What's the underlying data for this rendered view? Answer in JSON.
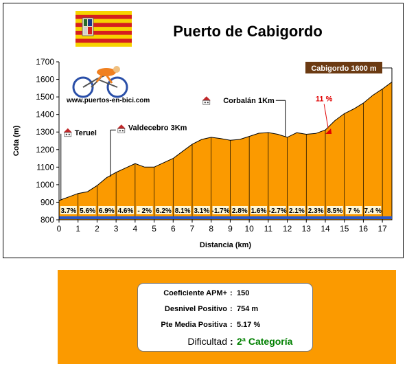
{
  "header": {
    "title": "Puerto de Cabigordo",
    "flag_colors": [
      "#f6d400",
      "#d51f1f"
    ],
    "website": "www.puertos-en-bici.com"
  },
  "chart_data": {
    "type": "area",
    "title": "Puerto de Cabigordo",
    "xlabel": "Distancia (km)",
    "ylabel": "Cota (m)",
    "xlim": [
      0,
      17.5
    ],
    "ylim": [
      800,
      1700
    ],
    "x_ticks": [
      0,
      1,
      2,
      3,
      4,
      5,
      6,
      7,
      8,
      9,
      10,
      11,
      12,
      13,
      14,
      15,
      16,
      17
    ],
    "y_ticks": [
      800,
      900,
      1000,
      1100,
      1200,
      1300,
      1400,
      1500,
      1600,
      1700
    ],
    "grid": false,
    "fill_color": "#fb9a00",
    "profile": [
      {
        "x": 0,
        "y": 910
      },
      {
        "x": 0.5,
        "y": 930
      },
      {
        "x": 1,
        "y": 950
      },
      {
        "x": 1.5,
        "y": 960
      },
      {
        "x": 2,
        "y": 995
      },
      {
        "x": 2.5,
        "y": 1040
      },
      {
        "x": 3,
        "y": 1070
      },
      {
        "x": 3.5,
        "y": 1095
      },
      {
        "x": 4,
        "y": 1120
      },
      {
        "x": 4.5,
        "y": 1100
      },
      {
        "x": 5,
        "y": 1100
      },
      {
        "x": 5.5,
        "y": 1125
      },
      {
        "x": 6,
        "y": 1150
      },
      {
        "x": 6.5,
        "y": 1190
      },
      {
        "x": 7,
        "y": 1230
      },
      {
        "x": 7.5,
        "y": 1258
      },
      {
        "x": 8,
        "y": 1270
      },
      {
        "x": 8.5,
        "y": 1263
      },
      {
        "x": 9,
        "y": 1253
      },
      {
        "x": 9.5,
        "y": 1258
      },
      {
        "x": 10,
        "y": 1275
      },
      {
        "x": 10.5,
        "y": 1293
      },
      {
        "x": 11,
        "y": 1297
      },
      {
        "x": 11.5,
        "y": 1287
      },
      {
        "x": 12,
        "y": 1270
      },
      {
        "x": 12.5,
        "y": 1296
      },
      {
        "x": 13,
        "y": 1287
      },
      {
        "x": 13.5,
        "y": 1292
      },
      {
        "x": 14,
        "y": 1312
      },
      {
        "x": 14.5,
        "y": 1365
      },
      {
        "x": 15,
        "y": 1405
      },
      {
        "x": 15.5,
        "y": 1432
      },
      {
        "x": 16,
        "y": 1465
      },
      {
        "x": 16.5,
        "y": 1510
      },
      {
        "x": 17,
        "y": 1545
      },
      {
        "x": 17.5,
        "y": 1585
      }
    ],
    "segment_gradients": [
      {
        "km": 0,
        "label": "3.7%"
      },
      {
        "km": 1,
        "label": "5.6%"
      },
      {
        "km": 2,
        "label": "6.9%"
      },
      {
        "km": 3,
        "label": "4.6%"
      },
      {
        "km": 4,
        "label": "- 2%"
      },
      {
        "km": 5,
        "label": "6.2%"
      },
      {
        "km": 6,
        "label": "8.1%"
      },
      {
        "km": 7,
        "label": "3.1%"
      },
      {
        "km": 8,
        "label": "-1.7%"
      },
      {
        "km": 9,
        "label": "2.8%"
      },
      {
        "km": 10,
        "label": "1.6%"
      },
      {
        "km": 11,
        "label": "-2.7%"
      },
      {
        "km": 12,
        "label": "2.1%"
      },
      {
        "km": 13,
        "label": "2.3%"
      },
      {
        "km": 14,
        "label": "8.5%"
      },
      {
        "km": 15,
        "label": "7 %"
      },
      {
        "km": 16,
        "label": "7.4 %"
      }
    ],
    "annotations": [
      {
        "label": "Teruel",
        "x": 0.1,
        "y": 1290,
        "icon": "house-icon"
      },
      {
        "label": "Valdecebro 3Km",
        "x": 2.7,
        "y": 1335,
        "icon": "house-icon"
      },
      {
        "label": "Corbalán 1Km",
        "x": 11.9,
        "y": 1480,
        "icon": "house-icon"
      },
      {
        "label": "Cabigordo 1600 m",
        "x": 17.5,
        "y": 1665,
        "icon": "summit-flag"
      }
    ],
    "max_gradient": {
      "label": "11 %",
      "x": 14.15,
      "y": 1305,
      "color": "#e00000"
    }
  },
  "summary": {
    "rows": [
      {
        "label": "Coeficiente APM+",
        "value": "150"
      },
      {
        "label": "Desnivel Positivo",
        "value": "754 m"
      },
      {
        "label": "Pte Media Positiva",
        "value": "5.17 %"
      }
    ],
    "difficulty_label": "Dificultad",
    "difficulty_value": "2ª Categoría",
    "separator": ":"
  }
}
